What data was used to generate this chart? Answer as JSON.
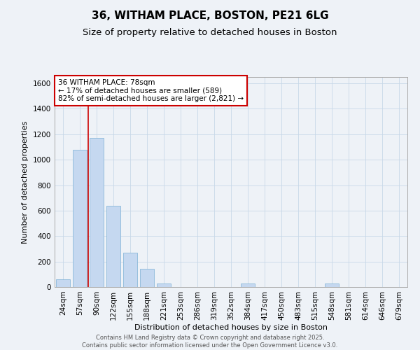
{
  "title_line1": "36, WITHAM PLACE, BOSTON, PE21 6LG",
  "title_line2": "Size of property relative to detached houses in Boston",
  "xlabel": "Distribution of detached houses by size in Boston",
  "ylabel": "Number of detached properties",
  "categories": [
    "24sqm",
    "57sqm",
    "90sqm",
    "122sqm",
    "155sqm",
    "188sqm",
    "221sqm",
    "253sqm",
    "286sqm",
    "319sqm",
    "352sqm",
    "384sqm",
    "417sqm",
    "450sqm",
    "483sqm",
    "515sqm",
    "548sqm",
    "581sqm",
    "614sqm",
    "646sqm",
    "679sqm"
  ],
  "values": [
    60,
    1080,
    1170,
    640,
    270,
    145,
    30,
    0,
    0,
    0,
    0,
    30,
    0,
    0,
    0,
    0,
    30,
    0,
    0,
    0,
    0
  ],
  "bar_color": "#c5d8f0",
  "bar_edgecolor": "#7bafd4",
  "annotation_box_text": "36 WITHAM PLACE: 78sqm\n← 17% of detached houses are smaller (589)\n82% of semi-detached houses are larger (2,821) →",
  "annotation_box_color": "#ffffff",
  "annotation_box_edgecolor": "#cc0000",
  "vline_color": "#cc0000",
  "grid_color": "#c8d8e8",
  "background_color": "#eef2f7",
  "ylim": [
    0,
    1650
  ],
  "yticks": [
    0,
    200,
    400,
    600,
    800,
    1000,
    1200,
    1400,
    1600
  ],
  "footer_text": "Contains HM Land Registry data © Crown copyright and database right 2025.\nContains public sector information licensed under the Open Government Licence v3.0.",
  "title_fontsize": 11,
  "subtitle_fontsize": 9.5,
  "axis_label_fontsize": 8,
  "tick_fontsize": 7.5,
  "annotation_fontsize": 7.5,
  "footer_fontsize": 6
}
